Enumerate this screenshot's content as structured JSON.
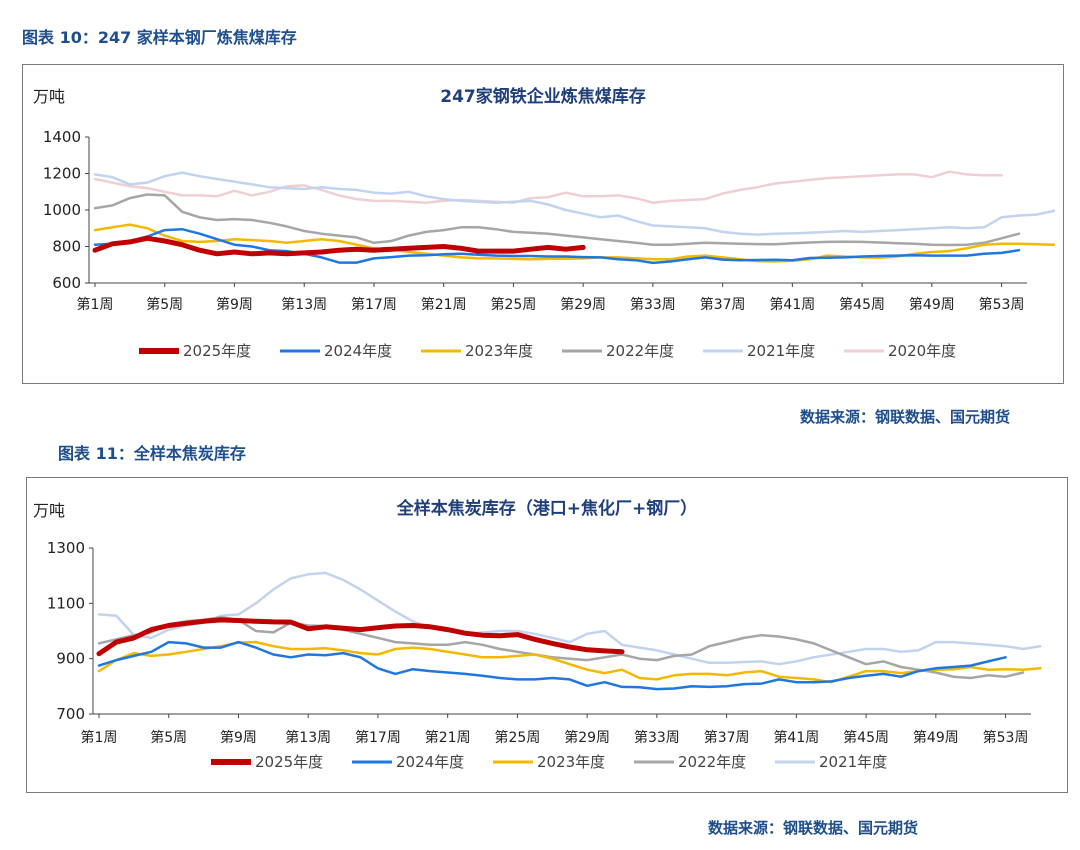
{
  "figures": [
    {
      "caption": "图表 10：247 家样本钢厂炼焦煤库存",
      "source": "数据来源：钢联数据、国元期货"
    },
    {
      "caption": "图表 11：全样本焦炭库存",
      "source": "数据来源：钢联数据、国元期货"
    }
  ],
  "chart_data": [
    {
      "type": "line",
      "title": "247家钢铁企业炼焦煤库存",
      "ylabel": "万吨",
      "xlabel": "",
      "ylim": [
        600,
        1400
      ],
      "yticks": [
        600,
        800,
        1000,
        1200,
        1400
      ],
      "x_tick_labels": [
        "第1周",
        "第5周",
        "第9周",
        "第13周",
        "第17周",
        "第21周",
        "第25周",
        "第29周",
        "第33周",
        "第37周",
        "第41周",
        "第45周",
        "第49周",
        "第53周"
      ],
      "grid": false,
      "legend": "bottom",
      "series": [
        {
          "name": "2025年度",
          "color": "#c00000",
          "values": [
            780,
            815,
            825,
            845,
            830,
            810,
            780,
            760,
            770,
            760,
            765,
            760,
            765,
            770,
            780,
            785,
            780,
            785,
            790,
            795,
            800,
            790,
            775,
            775,
            775,
            785,
            795,
            785,
            795
          ]
        },
        {
          "name": "2024年度",
          "color": "#1f77e0",
          "values": [
            810,
            815,
            830,
            855,
            890,
            895,
            870,
            840,
            810,
            800,
            780,
            775,
            760,
            740,
            712,
            712,
            735,
            742,
            750,
            752,
            757,
            760,
            755,
            750,
            748,
            748,
            745,
            745,
            742,
            740,
            730,
            725,
            710,
            718,
            730,
            740,
            728,
            725,
            726,
            727,
            725,
            737,
            738,
            740,
            745,
            748,
            750,
            752,
            750,
            750,
            750,
            760,
            765,
            780
          ]
        },
        {
          "name": "2023年度",
          "color": "#f5b800",
          "values": [
            890,
            905,
            920,
            900,
            860,
            830,
            825,
            830,
            840,
            835,
            830,
            820,
            830,
            840,
            830,
            810,
            790,
            785,
            770,
            760,
            750,
            740,
            735,
            735,
            732,
            730,
            732,
            733,
            735,
            740,
            740,
            735,
            730,
            730,
            745,
            750,
            740,
            730,
            720,
            718,
            722,
            730,
            750,
            745,
            740,
            738,
            745,
            760,
            770,
            775,
            790,
            810,
            815,
            815,
            812,
            810
          ]
        },
        {
          "name": "2022年度",
          "color": "#a6a6a6",
          "values": [
            1010,
            1025,
            1065,
            1085,
            1080,
            990,
            960,
            945,
            950,
            945,
            930,
            910,
            885,
            870,
            860,
            850,
            820,
            830,
            860,
            880,
            890,
            905,
            905,
            895,
            880,
            875,
            870,
            860,
            850,
            840,
            830,
            820,
            810,
            810,
            815,
            820,
            818,
            815,
            813,
            812,
            818,
            822,
            825,
            826,
            825,
            822,
            818,
            815,
            810,
            808,
            810,
            820,
            845,
            870
          ]
        },
        {
          "name": "2021年度",
          "color": "#c2d3f0",
          "values": [
            1195,
            1180,
            1140,
            1150,
            1185,
            1205,
            1185,
            1170,
            1155,
            1140,
            1125,
            1120,
            1115,
            1125,
            1115,
            1110,
            1095,
            1090,
            1100,
            1075,
            1060,
            1050,
            1045,
            1040,
            1045,
            1050,
            1030,
            1000,
            980,
            960,
            970,
            940,
            915,
            910,
            905,
            900,
            880,
            870,
            865,
            870,
            872,
            875,
            880,
            885,
            880,
            885,
            890,
            895,
            900,
            905,
            900,
            905,
            960,
            970,
            975,
            995
          ]
        },
        {
          "name": "2020年度",
          "color": "#f0cfd2",
          "values": [
            1170,
            1150,
            1130,
            1120,
            1100,
            1080,
            1080,
            1075,
            1105,
            1080,
            1100,
            1130,
            1135,
            1110,
            1080,
            1060,
            1050,
            1050,
            1045,
            1040,
            1050,
            1055,
            1050,
            1045,
            1040,
            1065,
            1070,
            1095,
            1075,
            1075,
            1080,
            1065,
            1040,
            1050,
            1055,
            1060,
            1090,
            1110,
            1125,
            1145,
            1155,
            1165,
            1175,
            1180,
            1185,
            1190,
            1195,
            1195,
            1180,
            1210,
            1195,
            1190,
            1190
          ]
        }
      ]
    },
    {
      "type": "line",
      "title": "全样本焦炭库存（港口+焦化厂+钢厂）",
      "ylabel": "万吨",
      "xlabel": "",
      "ylim": [
        700,
        1300
      ],
      "yticks": [
        700,
        900,
        1100,
        1300
      ],
      "x_tick_labels": [
        "第1周",
        "第5周",
        "第9周",
        "第13周",
        "第17周",
        "第21周",
        "第25周",
        "第29周",
        "第33周",
        "第37周",
        "第41周",
        "第45周",
        "第49周",
        "第53周"
      ],
      "grid": false,
      "legend": "bottom",
      "series": [
        {
          "name": "2025年度",
          "color": "#c00000",
          "values": [
            918,
            960,
            975,
            1005,
            1020,
            1028,
            1035,
            1040,
            1038,
            1035,
            1033,
            1032,
            1008,
            1015,
            1010,
            1005,
            1012,
            1018,
            1020,
            1015,
            1005,
            992,
            985,
            983,
            987,
            970,
            955,
            942,
            932,
            928,
            925
          ]
        },
        {
          "name": "2024年度",
          "color": "#1f77e0",
          "values": [
            875,
            895,
            910,
            925,
            960,
            955,
            940,
            940,
            960,
            940,
            915,
            905,
            915,
            912,
            920,
            905,
            865,
            845,
            862,
            855,
            850,
            845,
            838,
            830,
            825,
            825,
            830,
            825,
            802,
            815,
            798,
            797,
            790,
            792,
            800,
            798,
            800,
            808,
            810,
            825,
            815,
            815,
            818,
            830,
            838,
            845,
            835,
            855,
            865,
            870,
            875,
            890,
            905
          ]
        },
        {
          "name": "2023年度",
          "color": "#f5b800",
          "values": [
            855,
            895,
            920,
            910,
            915,
            925,
            935,
            945,
            958,
            960,
            945,
            935,
            935,
            938,
            930,
            920,
            915,
            935,
            940,
            935,
            925,
            915,
            905,
            905,
            910,
            915,
            900,
            880,
            860,
            848,
            860,
            830,
            825,
            840,
            845,
            845,
            840,
            850,
            855,
            835,
            830,
            825,
            815,
            835,
            855,
            855,
            848,
            855,
            860,
            862,
            870,
            860,
            862,
            860,
            865
          ]
        },
        {
          "name": "2022年度",
          "color": "#a6a6a6",
          "values": [
            955,
            970,
            985,
            995,
            1025,
            1035,
            1040,
            1050,
            1040,
            1000,
            995,
            1030,
            1020,
            1018,
            1005,
            990,
            975,
            960,
            955,
            950,
            950,
            960,
            950,
            935,
            925,
            915,
            905,
            900,
            895,
            905,
            915,
            900,
            895,
            910,
            915,
            945,
            960,
            975,
            985,
            980,
            970,
            955,
            930,
            905,
            880,
            890,
            870,
            860,
            850,
            835,
            830,
            840,
            835,
            850
          ]
        },
        {
          "name": "2021年度",
          "color": "#c2d3f0",
          "values": [
            1060,
            1055,
            985,
            975,
            1005,
            1020,
            1030,
            1055,
            1060,
            1100,
            1150,
            1190,
            1205,
            1210,
            1185,
            1150,
            1110,
            1070,
            1035,
            1010,
            1000,
            990,
            995,
            1000,
            1000,
            990,
            975,
            960,
            990,
            1000,
            950,
            940,
            930,
            915,
            900,
            885,
            885,
            888,
            890,
            880,
            890,
            905,
            915,
            925,
            935,
            935,
            925,
            930,
            960,
            960,
            955,
            950,
            945,
            935,
            945
          ]
        }
      ]
    }
  ]
}
